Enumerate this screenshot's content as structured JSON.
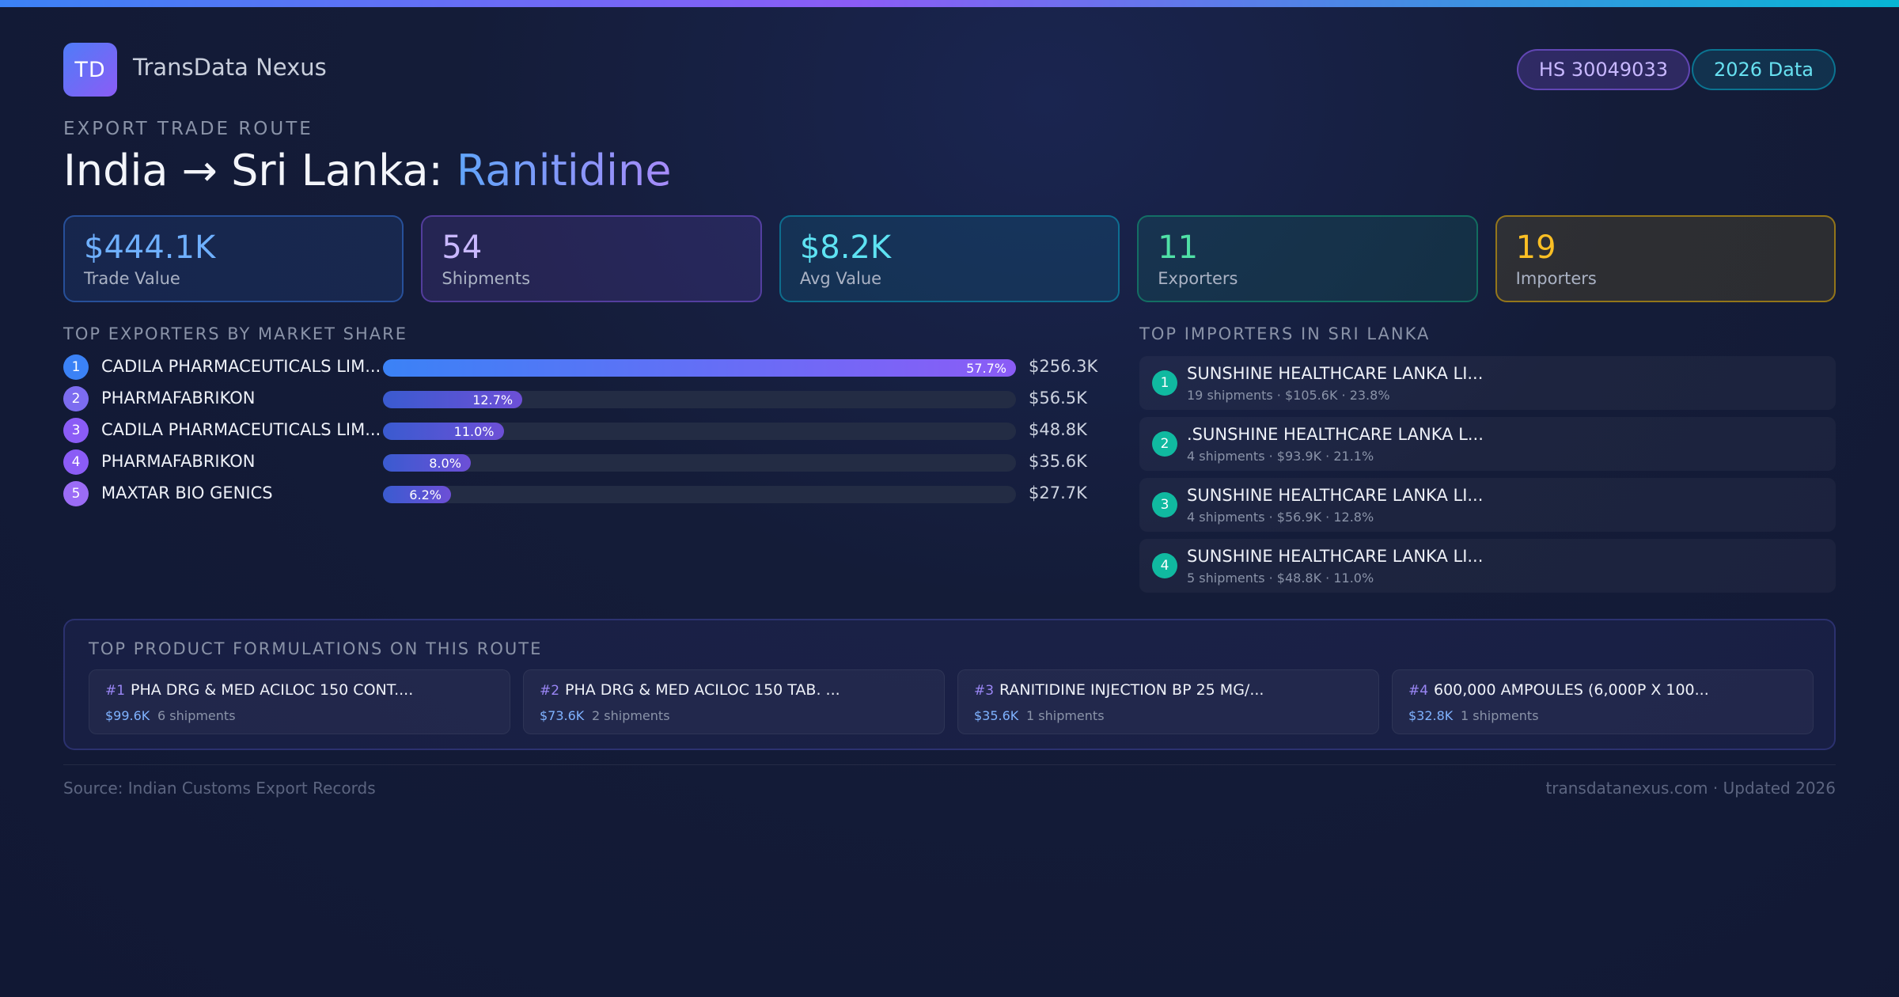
{
  "brand": {
    "initials": "TD",
    "name": "TransData Nexus"
  },
  "badges": {
    "hs_code": "HS 30049033",
    "year": "2026 Data"
  },
  "route": {
    "eyebrow": "EXPORT TRADE ROUTE",
    "title_prefix": "India → Sri Lanka: ",
    "product": "Ranitidine"
  },
  "stats": [
    {
      "value": "$444.1K",
      "label": "Trade Value"
    },
    {
      "value": "54",
      "label": "Shipments"
    },
    {
      "value": "$8.2K",
      "label": "Avg Value"
    },
    {
      "value": "11",
      "label": "Exporters"
    },
    {
      "value": "19",
      "label": "Importers"
    }
  ],
  "exporters": {
    "heading": "TOP EXPORTERS BY MARKET SHARE",
    "rows": [
      {
        "rank": "1",
        "name": "CADILA PHARMACEUTICALS LIM...",
        "share_label": "57.7%",
        "share": 57.7,
        "value": "$256.3K",
        "color": "#3b82f6"
      },
      {
        "rank": "2",
        "name": "PHARMAFABRIKON",
        "share_label": "12.7%",
        "share": 12.7,
        "value": "$56.5K",
        "color": "#7c6cf0"
      },
      {
        "rank": "3",
        "name": "CADILA PHARMACEUTICALS LIM...",
        "share_label": "11.0%",
        "share": 11.0,
        "value": "$48.8K",
        "color": "#8b5cf6"
      },
      {
        "rank": "4",
        "name": "PHARMAFABRIKON",
        "share_label": "8.0%",
        "share": 8.0,
        "value": "$35.6K",
        "color": "#8b5cf6"
      },
      {
        "rank": "5",
        "name": "MAXTAR BIO GENICS",
        "share_label": "6.2%",
        "share": 6.2,
        "value": "$27.7K",
        "color": "#9b6cf6"
      }
    ]
  },
  "importers": {
    "heading": "TOP IMPORTERS IN SRI LANKA",
    "rows": [
      {
        "rank": "1",
        "name": "SUNSHINE HEALTHCARE LANKA LI...",
        "meta": "19 shipments · $105.6K · 23.8%"
      },
      {
        "rank": "2",
        "name": ".SUNSHINE HEALTHCARE LANKA L...",
        "meta": "4 shipments · $93.9K · 21.1%"
      },
      {
        "rank": "3",
        "name": "SUNSHINE HEALTHCARE LANKA LI...",
        "meta": "4 shipments · $56.9K · 12.8%"
      },
      {
        "rank": "4",
        "name": "SUNSHINE HEALTHCARE LANKA LI...",
        "meta": "5 shipments · $48.8K · 11.0%"
      }
    ]
  },
  "formulations": {
    "heading": "TOP PRODUCT FORMULATIONS ON THIS ROUTE",
    "items": [
      {
        "num": "#1",
        "name": "PHA DRG & MED ACILOC 150 CONT....",
        "value": "$99.6K",
        "shipments": "6 shipments"
      },
      {
        "num": "#2",
        "name": "PHA DRG & MED ACILOC 150 TAB. ...",
        "value": "$73.6K",
        "shipments": "2 shipments"
      },
      {
        "num": "#3",
        "name": "RANITIDINE INJECTION BP 25 MG/...",
        "value": "$35.6K",
        "shipments": "1 shipments"
      },
      {
        "num": "#4",
        "name": "600,000 AMPOULES (6,000P X 100...",
        "value": "$32.8K",
        "shipments": "1 shipments"
      }
    ]
  },
  "footer": {
    "source": "Source: Indian Customs Export Records",
    "site": "transdatanexus.com · Updated 2026"
  }
}
